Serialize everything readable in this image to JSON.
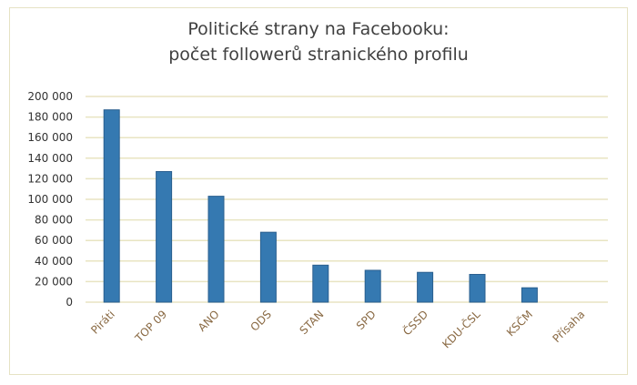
{
  "chart_data": {
    "type": "bar",
    "title": [
      "Politické strany na Facebooku:",
      "počet followerů stranického profilu"
    ],
    "categories": [
      "Piráti",
      "TOP 09",
      "ANO",
      "ODS",
      "STAN",
      "SPD",
      "ČSSD",
      "KDU-ČSL",
      "KSČM",
      "Přísaha"
    ],
    "values": [
      187000,
      127000,
      103000,
      68000,
      36000,
      31000,
      29000,
      27000,
      14000,
      0
    ],
    "ylim": [
      0,
      200000
    ],
    "yticks": [
      0,
      20000,
      40000,
      60000,
      80000,
      100000,
      120000,
      140000,
      160000,
      180000,
      200000
    ],
    "ytick_labels": [
      "0",
      "20 000",
      "40 000",
      "60 000",
      "80 000",
      "100 000",
      "120 000",
      "140 000",
      "160 000",
      "180 000",
      "200 000"
    ],
    "xlabel": "",
    "ylabel": "",
    "grid": true,
    "legend": "none",
    "colors": {
      "bar": "#3579b1",
      "bar_edge": "#2a5f8f",
      "grid": "#e8e4c2",
      "category_labels": "#8a6a44"
    }
  }
}
